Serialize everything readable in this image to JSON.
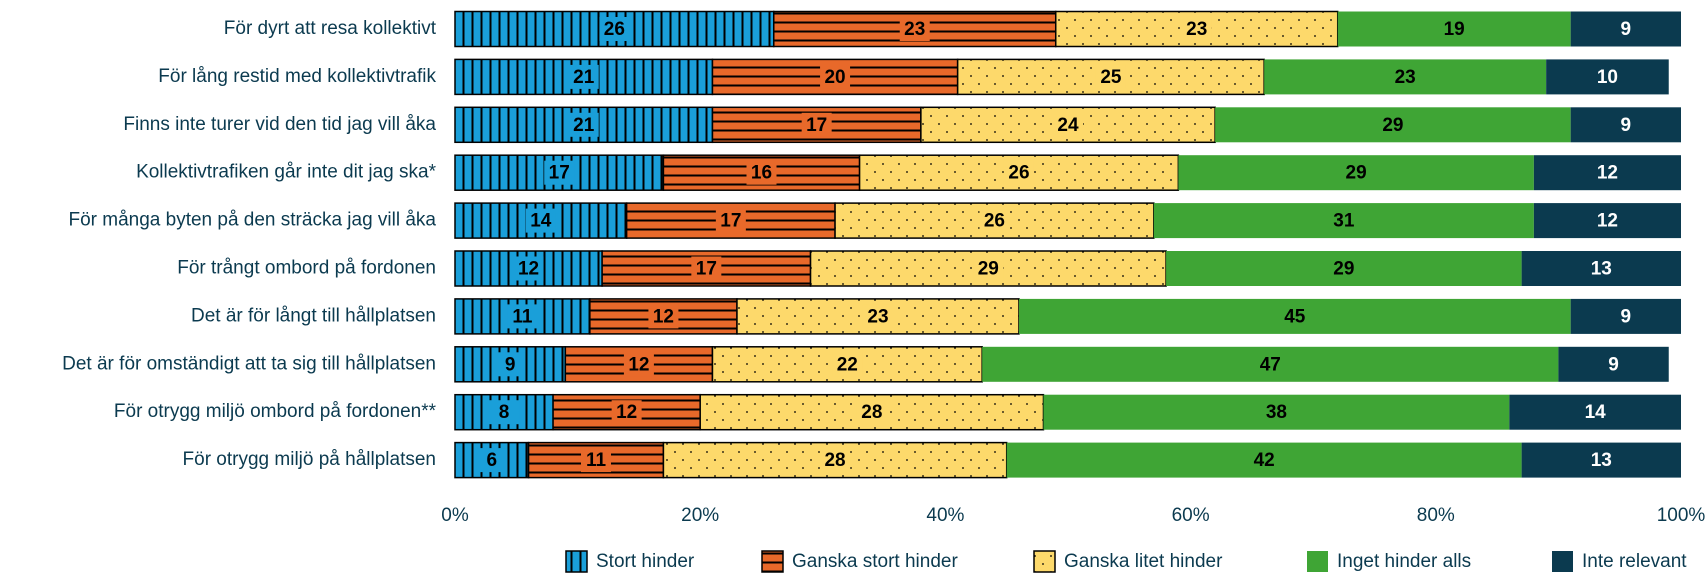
{
  "chart_data": {
    "type": "stacked_barh",
    "categories": [
      "För dyrt att resa kollektivt",
      "För lång restid med kollektivtrafik",
      "Finns inte turer vid den tid jag vill åka",
      "Kollektivtrafiken går inte dit jag ska*",
      "För många byten på den sträcka jag vill åka",
      "För trångt ombord på fordonen",
      "Det är för långt till hållplatsen",
      "Det är för omständigt att ta sig till hållplatsen",
      "För otrygg miljö ombord på fordonen**",
      "För otrygg miljö på hållplatsen"
    ],
    "series": [
      {
        "name": "Stort hinder",
        "color": "#1a9fd9",
        "hatch": "vertical",
        "values": [
          26,
          21,
          21,
          17,
          14,
          12,
          11,
          9,
          8,
          6
        ]
      },
      {
        "name": "Ganska stort hinder",
        "color": "#e8692a",
        "hatch": "horizontal",
        "values": [
          23,
          20,
          17,
          16,
          17,
          17,
          12,
          12,
          12,
          11
        ]
      },
      {
        "name": "Ganska litet hinder",
        "color": "#fdd96b",
        "hatch": "dots",
        "values": [
          23,
          25,
          24,
          26,
          26,
          29,
          23,
          22,
          28,
          28
        ]
      },
      {
        "name": "Inget hinder alls",
        "color": "#3fa535",
        "hatch": null,
        "values": [
          19,
          23,
          29,
          29,
          31,
          29,
          45,
          47,
          38,
          42
        ]
      },
      {
        "name": "Inte relevant",
        "color": "#0b3a4f",
        "hatch": null,
        "values": [
          9,
          10,
          9,
          12,
          12,
          13,
          9,
          9,
          14,
          13
        ]
      }
    ],
    "xlim": [
      0,
      100
    ],
    "xticks": [
      {
        "value": 0,
        "label": "0%"
      },
      {
        "value": 20,
        "label": "20%"
      },
      {
        "value": 40,
        "label": "40%"
      },
      {
        "value": 60,
        "label": "60%"
      },
      {
        "value": 80,
        "label": "80%"
      },
      {
        "value": 100,
        "label": "100%"
      }
    ]
  }
}
